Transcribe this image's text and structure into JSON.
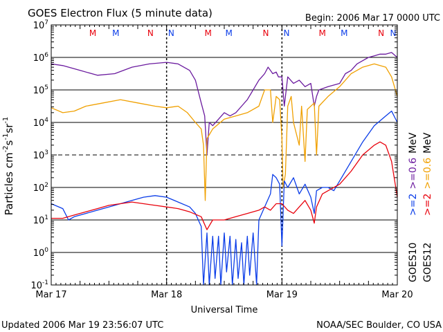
{
  "header": {
    "title": "GOES Electron Flux (5 minute data)",
    "begin": "Begin: 2006 Mar 17 0000 UTC"
  },
  "footer": {
    "updated": "Updated 2006 Mar 19 23:56:07 UTC",
    "credit": "NOAA/SEC Boulder, CO USA"
  },
  "chart_data": {
    "type": "line",
    "title": "GOES Electron Flux (5 minute data)",
    "xlabel": "Universal Time",
    "ylabel_parts": [
      "Particles cm",
      "-2",
      "s",
      "-1",
      "sr",
      "-1"
    ],
    "ylabel": "Particles cm-2s-1sr-1",
    "yscale": "log",
    "ylim_exp": [
      -1,
      7
    ],
    "y_ticks": [
      {
        "base": "10",
        "exp": "-1"
      },
      {
        "base": "10",
        "exp": "0"
      },
      {
        "base": "10",
        "exp": "1"
      },
      {
        "base": "10",
        "exp": "2"
      },
      {
        "base": "10",
        "exp": "3"
      },
      {
        "base": "10",
        "exp": "4"
      },
      {
        "base": "10",
        "exp": "5"
      },
      {
        "base": "10",
        "exp": "6"
      },
      {
        "base": "10",
        "exp": "7"
      }
    ],
    "x_ticks": [
      "Mar 17",
      "Mar 18",
      "Mar 19",
      "Mar 20"
    ],
    "xlim_days": [
      0,
      3
    ],
    "threshold_exp": 3,
    "markers": [
      {
        "label": "M",
        "day": 0.36,
        "color": "#e8000b"
      },
      {
        "label": "M",
        "day": 0.56,
        "color": "#0a3ce8"
      },
      {
        "label": "N",
        "day": 0.86,
        "color": "#e8000b"
      },
      {
        "label": "N",
        "day": 1.04,
        "color": "#0a3ce8"
      },
      {
        "label": "M",
        "day": 1.36,
        "color": "#e8000b"
      },
      {
        "label": "M",
        "day": 1.54,
        "color": "#0a3ce8"
      },
      {
        "label": "N",
        "day": 1.86,
        "color": "#e8000b"
      },
      {
        "label": "N",
        "day": 2.04,
        "color": "#0a3ce8"
      },
      {
        "label": "M",
        "day": 2.35,
        "color": "#e8000b"
      },
      {
        "label": "M",
        "day": 2.54,
        "color": "#0a3ce8"
      },
      {
        "label": "N",
        "day": 2.86,
        "color": "#e8000b"
      },
      {
        "label": "N",
        "day": 3.04,
        "color": "#0a3ce8"
      }
    ],
    "legend": {
      "goes10": {
        "label": "GOES10",
        "e2": ">=2",
        "e06": ">=0.6",
        "color_e2": "#0a3ce8",
        "color_e06": "#6a1a9e"
      },
      "goes12": {
        "label": "GOES12",
        "e2": ">=2",
        "e06": ">=0.6",
        "color_e2": "#e8000b",
        "color_e06": "#f0a000"
      },
      "unit": "MeV"
    },
    "series": [
      {
        "name": "GOES10 >=0.6 MeV",
        "color": "#6a1a9e",
        "points": [
          [
            0,
            5.8
          ],
          [
            0.1,
            5.75
          ],
          [
            0.25,
            5.6
          ],
          [
            0.4,
            5.45
          ],
          [
            0.55,
            5.5
          ],
          [
            0.7,
            5.7
          ],
          [
            0.85,
            5.8
          ],
          [
            1.0,
            5.85
          ],
          [
            1.1,
            5.8
          ],
          [
            1.2,
            5.6
          ],
          [
            1.25,
            5.3
          ],
          [
            1.3,
            4.6
          ],
          [
            1.33,
            4.2
          ],
          [
            1.35,
            3.0
          ],
          [
            1.37,
            4.0
          ],
          [
            1.4,
            3.9
          ],
          [
            1.45,
            4.1
          ],
          [
            1.5,
            4.3
          ],
          [
            1.55,
            4.2
          ],
          [
            1.6,
            4.3
          ],
          [
            1.65,
            4.5
          ],
          [
            1.7,
            4.7
          ],
          [
            1.75,
            5.0
          ],
          [
            1.8,
            5.3
          ],
          [
            1.85,
            5.5
          ],
          [
            1.88,
            5.7
          ],
          [
            1.9,
            5.6
          ],
          [
            1.92,
            5.5
          ],
          [
            1.95,
            5.55
          ],
          [
            1.97,
            5.4
          ],
          [
            2.0,
            5.4
          ],
          [
            2.02,
            4.5
          ],
          [
            2.05,
            5.4
          ],
          [
            2.1,
            5.2
          ],
          [
            2.15,
            5.3
          ],
          [
            2.2,
            5.1
          ],
          [
            2.25,
            5.2
          ],
          [
            2.28,
            4.5
          ],
          [
            2.3,
            4.8
          ],
          [
            2.32,
            5.0
          ],
          [
            2.4,
            5.1
          ],
          [
            2.5,
            5.2
          ],
          [
            2.55,
            5.5
          ],
          [
            2.6,
            5.6
          ],
          [
            2.65,
            5.8
          ],
          [
            2.7,
            5.9
          ],
          [
            2.75,
            6.0
          ],
          [
            2.8,
            6.05
          ],
          [
            2.85,
            6.1
          ],
          [
            2.9,
            6.1
          ],
          [
            2.95,
            6.15
          ],
          [
            3.0,
            6.0
          ]
        ]
      },
      {
        "name": "GOES12 >=0.6 MeV",
        "color": "#f0a000",
        "points": [
          [
            0,
            4.45
          ],
          [
            0.1,
            4.3
          ],
          [
            0.2,
            4.35
          ],
          [
            0.3,
            4.5
          ],
          [
            0.45,
            4.6
          ],
          [
            0.6,
            4.7
          ],
          [
            0.75,
            4.6
          ],
          [
            0.9,
            4.5
          ],
          [
            1.0,
            4.45
          ],
          [
            1.1,
            4.5
          ],
          [
            1.18,
            4.3
          ],
          [
            1.25,
            4.0
          ],
          [
            1.3,
            3.8
          ],
          [
            1.32,
            3.3
          ],
          [
            1.335,
            1.6
          ],
          [
            1.35,
            3.5
          ],
          [
            1.4,
            3.8
          ],
          [
            1.5,
            4.1
          ],
          [
            1.6,
            4.2
          ],
          [
            1.7,
            4.3
          ],
          [
            1.8,
            4.5
          ],
          [
            1.85,
            5.0
          ],
          [
            1.9,
            5.0
          ],
          [
            1.92,
            4.0
          ],
          [
            1.95,
            4.8
          ],
          [
            1.98,
            4.7
          ],
          [
            2.0,
            3.5
          ],
          [
            2.01,
            2.0
          ],
          [
            2.03,
            2.4
          ],
          [
            2.05,
            4.5
          ],
          [
            2.08,
            4.8
          ],
          [
            2.1,
            4.0
          ],
          [
            2.15,
            3.3
          ],
          [
            2.17,
            4.5
          ],
          [
            2.2,
            2.8
          ],
          [
            2.22,
            4.4
          ],
          [
            2.28,
            4.6
          ],
          [
            2.3,
            3.0
          ],
          [
            2.32,
            4.5
          ],
          [
            2.4,
            4.8
          ],
          [
            2.5,
            5.1
          ],
          [
            2.55,
            5.3
          ],
          [
            2.6,
            5.5
          ],
          [
            2.65,
            5.6
          ],
          [
            2.7,
            5.7
          ],
          [
            2.8,
            5.8
          ],
          [
            2.85,
            5.75
          ],
          [
            2.9,
            5.7
          ],
          [
            2.95,
            5.4
          ],
          [
            3.0,
            4.8
          ]
        ]
      },
      {
        "name": "GOES10 >=2 MeV",
        "color": "#0a3ce8",
        "points": [
          [
            0,
            1.5
          ],
          [
            0.1,
            1.35
          ],
          [
            0.15,
            1.0
          ],
          [
            0.2,
            1.1
          ],
          [
            0.3,
            1.2
          ],
          [
            0.4,
            1.3
          ],
          [
            0.5,
            1.4
          ],
          [
            0.6,
            1.5
          ],
          [
            0.7,
            1.6
          ],
          [
            0.8,
            1.7
          ],
          [
            0.9,
            1.75
          ],
          [
            1.0,
            1.7
          ],
          [
            1.1,
            1.55
          ],
          [
            1.2,
            1.4
          ],
          [
            1.25,
            1.2
          ],
          [
            1.3,
            0.8
          ],
          [
            1.32,
            -1.0
          ],
          [
            1.35,
            0.6
          ],
          [
            1.37,
            -1.0
          ],
          [
            1.4,
            0.5
          ],
          [
            1.42,
            -0.8
          ],
          [
            1.45,
            0.5
          ],
          [
            1.47,
            -1.0
          ],
          [
            1.5,
            0.6
          ],
          [
            1.52,
            -0.6
          ],
          [
            1.55,
            0.5
          ],
          [
            1.57,
            -1.0
          ],
          [
            1.6,
            0.4
          ],
          [
            1.62,
            -0.8
          ],
          [
            1.65,
            0.3
          ],
          [
            1.67,
            -1.0
          ],
          [
            1.7,
            0.5
          ],
          [
            1.72,
            -0.7
          ],
          [
            1.75,
            0.6
          ],
          [
            1.78,
            -1.0
          ],
          [
            1.8,
            1.0
          ],
          [
            1.85,
            1.4
          ],
          [
            1.9,
            1.8
          ],
          [
            1.92,
            2.4
          ],
          [
            1.95,
            2.3
          ],
          [
            1.98,
            2.1
          ],
          [
            2.0,
            0.2
          ],
          [
            2.02,
            2.2
          ],
          [
            2.05,
            2.0
          ],
          [
            2.1,
            2.3
          ],
          [
            2.15,
            1.8
          ],
          [
            2.2,
            2.1
          ],
          [
            2.25,
            1.7
          ],
          [
            2.28,
            1.2
          ],
          [
            2.3,
            1.9
          ],
          [
            2.35,
            2.0
          ],
          [
            2.4,
            2.0
          ],
          [
            2.45,
            1.9
          ],
          [
            2.5,
            2.2
          ],
          [
            2.6,
            2.8
          ],
          [
            2.7,
            3.4
          ],
          [
            2.8,
            3.9
          ],
          [
            2.9,
            4.2
          ],
          [
            2.95,
            4.35
          ],
          [
            3.0,
            4.0
          ]
        ]
      },
      {
        "name": "GOES12 >=2 MeV",
        "color": "#e8000b",
        "points": [
          [
            0,
            1.05
          ],
          [
            0.1,
            1.05
          ],
          [
            0.2,
            1.15
          ],
          [
            0.3,
            1.25
          ],
          [
            0.4,
            1.35
          ],
          [
            0.5,
            1.45
          ],
          [
            0.6,
            1.5
          ],
          [
            0.7,
            1.55
          ],
          [
            0.8,
            1.5
          ],
          [
            0.9,
            1.45
          ],
          [
            1.0,
            1.4
          ],
          [
            1.1,
            1.35
          ],
          [
            1.2,
            1.25
          ],
          [
            1.3,
            1.1
          ],
          [
            1.35,
            0.7
          ],
          [
            1.4,
            1.0
          ],
          [
            1.5,
            1.0
          ],
          [
            1.6,
            1.1
          ],
          [
            1.7,
            1.2
          ],
          [
            1.8,
            1.3
          ],
          [
            1.85,
            1.4
          ],
          [
            1.9,
            1.3
          ],
          [
            1.95,
            1.5
          ],
          [
            2.0,
            1.5
          ],
          [
            2.05,
            1.3
          ],
          [
            2.1,
            1.2
          ],
          [
            2.15,
            1.4
          ],
          [
            2.2,
            1.6
          ],
          [
            2.25,
            1.3
          ],
          [
            2.28,
            0.9
          ],
          [
            2.3,
            1.4
          ],
          [
            2.35,
            1.8
          ],
          [
            2.4,
            1.9
          ],
          [
            2.5,
            2.1
          ],
          [
            2.6,
            2.5
          ],
          [
            2.7,
            3.0
          ],
          [
            2.8,
            3.3
          ],
          [
            2.85,
            3.4
          ],
          [
            2.9,
            3.3
          ],
          [
            2.95,
            2.8
          ],
          [
            3.0,
            1.7
          ]
        ]
      }
    ]
  }
}
